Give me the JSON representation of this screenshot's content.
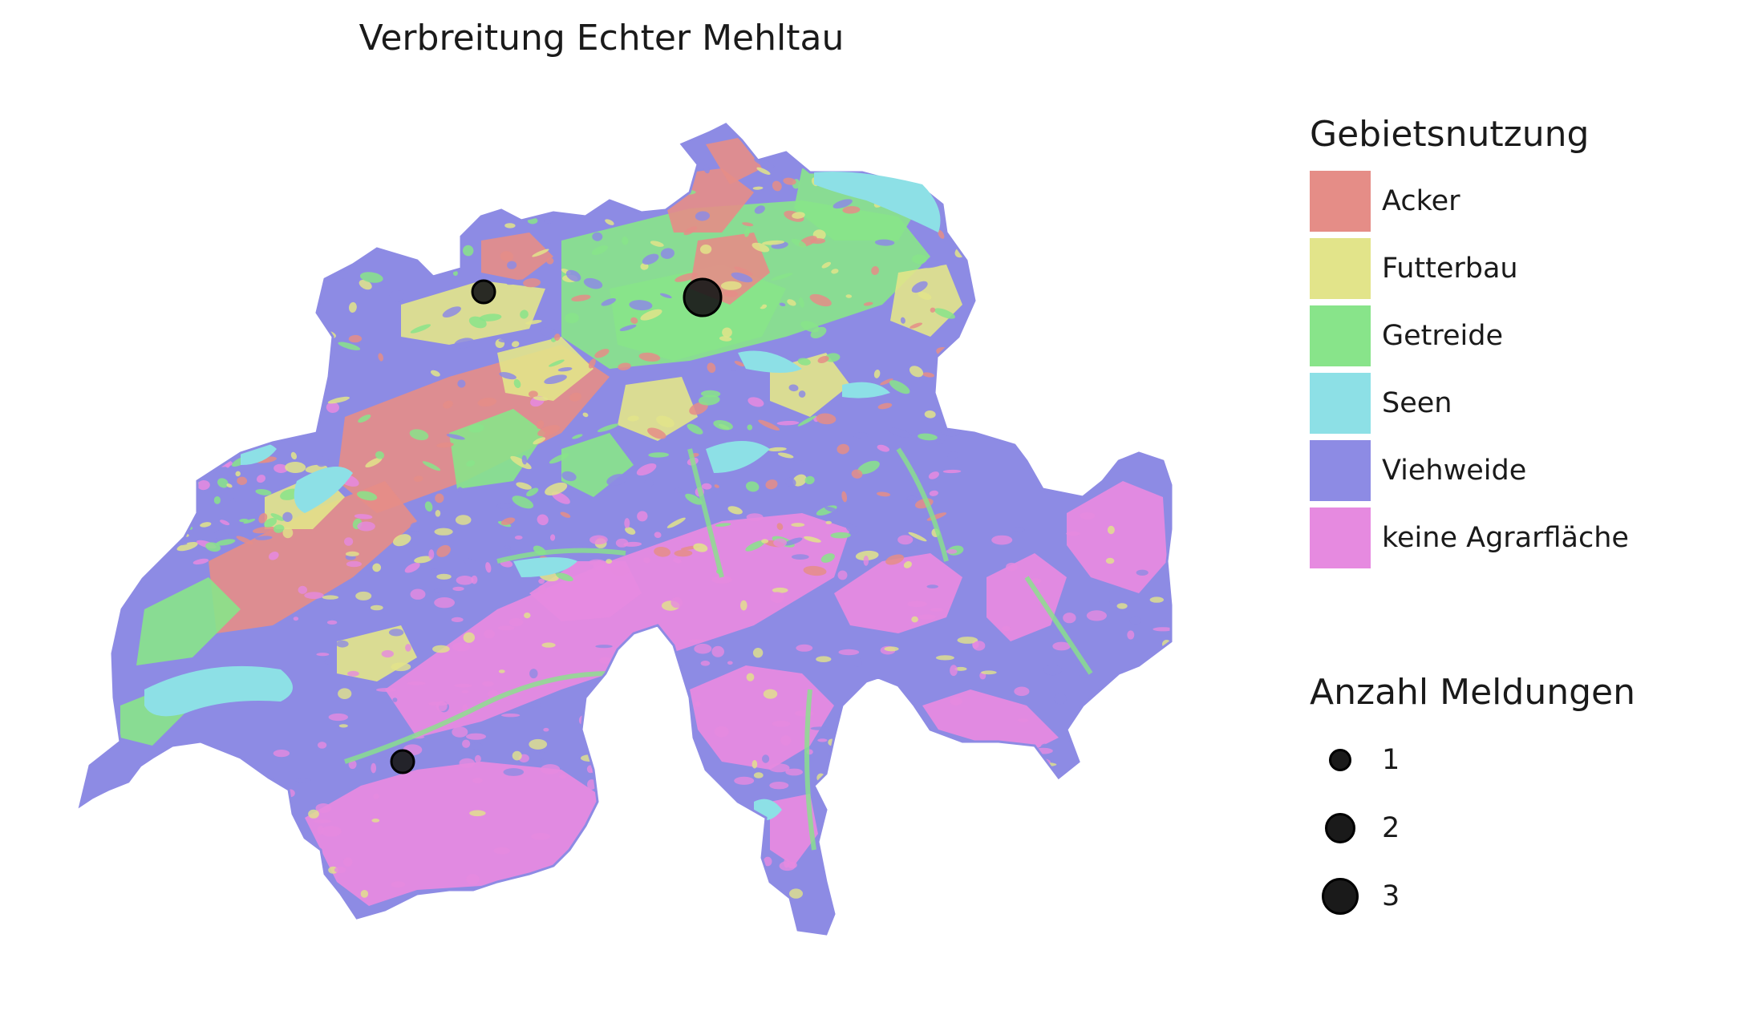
{
  "title": "Verbreitung Echter Mehltau",
  "legend_landuse": {
    "title": "Gebietsnutzung",
    "items": [
      {
        "label": "Acker",
        "color": "#e58d87"
      },
      {
        "label": "Futterbau",
        "color": "#e2e48a"
      },
      {
        "label": "Getreide",
        "color": "#88e48a"
      },
      {
        "label": "Seen",
        "color": "#8de0e6"
      },
      {
        "label": "Viehweide",
        "color": "#8d8be4"
      },
      {
        "label": "keine Agrarfläche",
        "color": "#e68ae0"
      }
    ]
  },
  "legend_reports": {
    "title": "Anzahl Meldungen",
    "items": [
      {
        "label": "1",
        "value": 1
      },
      {
        "label": "2",
        "value": 2
      },
      {
        "label": "3",
        "value": 3
      }
    ]
  },
  "markers": [
    {
      "name": "report-basel",
      "count": 1
    },
    {
      "name": "report-zurich",
      "count": 3
    },
    {
      "name": "report-valais",
      "count": 1
    }
  ],
  "colors": {
    "marker_fill": "#1a1a1a",
    "marker_stroke": "#000000"
  }
}
